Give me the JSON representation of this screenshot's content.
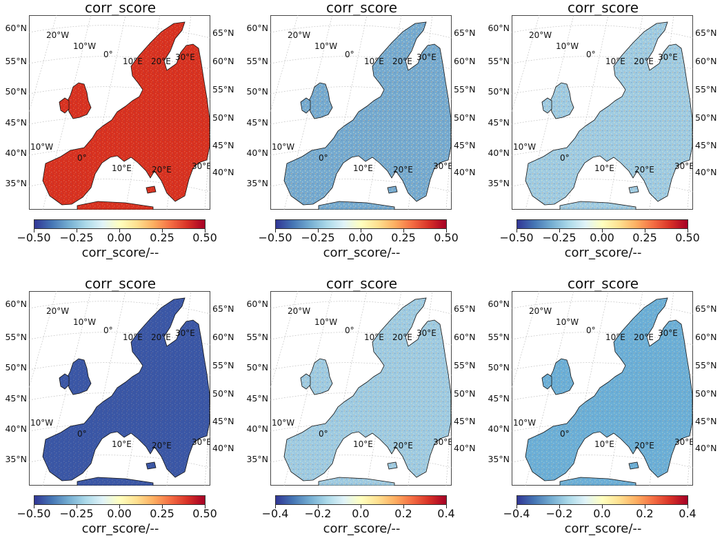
{
  "panels": [
    {
      "title": "corr_score",
      "cbar_label": "corr_score/--",
      "ticks": [
        "−0.50",
        "−0.25",
        "0.00",
        "0.25",
        "0.50"
      ],
      "tint": "#d7301f",
      "mix": 0.78
    },
    {
      "title": "corr_score",
      "cbar_label": "corr_score/--",
      "ticks": [
        "−0.50",
        "−0.25",
        "0.00",
        "0.25",
        "0.50"
      ],
      "tint": "#74a9cf",
      "mix": 0.55
    },
    {
      "title": "corr_score",
      "cbar_label": "corr_score/--",
      "ticks": [
        "−0.50",
        "−0.25",
        "0.00",
        "0.25",
        "0.50"
      ],
      "tint": "#9ecae1",
      "mix": 0.55
    },
    {
      "title": "corr_score",
      "cbar_label": "corr_score/--",
      "ticks": [
        "−0.50",
        "−0.25",
        "0.00",
        "0.25",
        "0.50"
      ],
      "tint": "#3a56a5",
      "mix": 0.85
    },
    {
      "title": "corr_score",
      "cbar_label": "corr_score/--",
      "ticks": [
        "−0.4",
        "−0.2",
        "0.0",
        "0.2",
        "0.4"
      ],
      "tint": "#9ecae1",
      "mix": 0.6
    },
    {
      "title": "corr_score",
      "cbar_label": "corr_score/--",
      "ticks": [
        "−0.4",
        "−0.2",
        "0.0",
        "0.2",
        "0.4"
      ],
      "tint": "#6baed6",
      "mix": 0.7
    }
  ],
  "lat_left": [
    "60°N",
    "55°N",
    "50°N",
    "45°N",
    "40°N",
    "35°N"
  ],
  "lat_right": [
    "65°N",
    "60°N",
    "55°N",
    "50°N",
    "45°N",
    "40°N"
  ],
  "lon_labels": [
    "20°W",
    "10°W",
    "0°",
    "10°E",
    "20°E",
    "30°E",
    "10°W",
    "0°",
    "10°E",
    "20°E",
    "30°E"
  ],
  "colormap": [
    "#313695",
    "#4575b4",
    "#74add1",
    "#abd9e9",
    "#e0f3f8",
    "#ffffbf",
    "#fee090",
    "#fdae61",
    "#f46d43",
    "#d73027",
    "#a50026"
  ]
}
